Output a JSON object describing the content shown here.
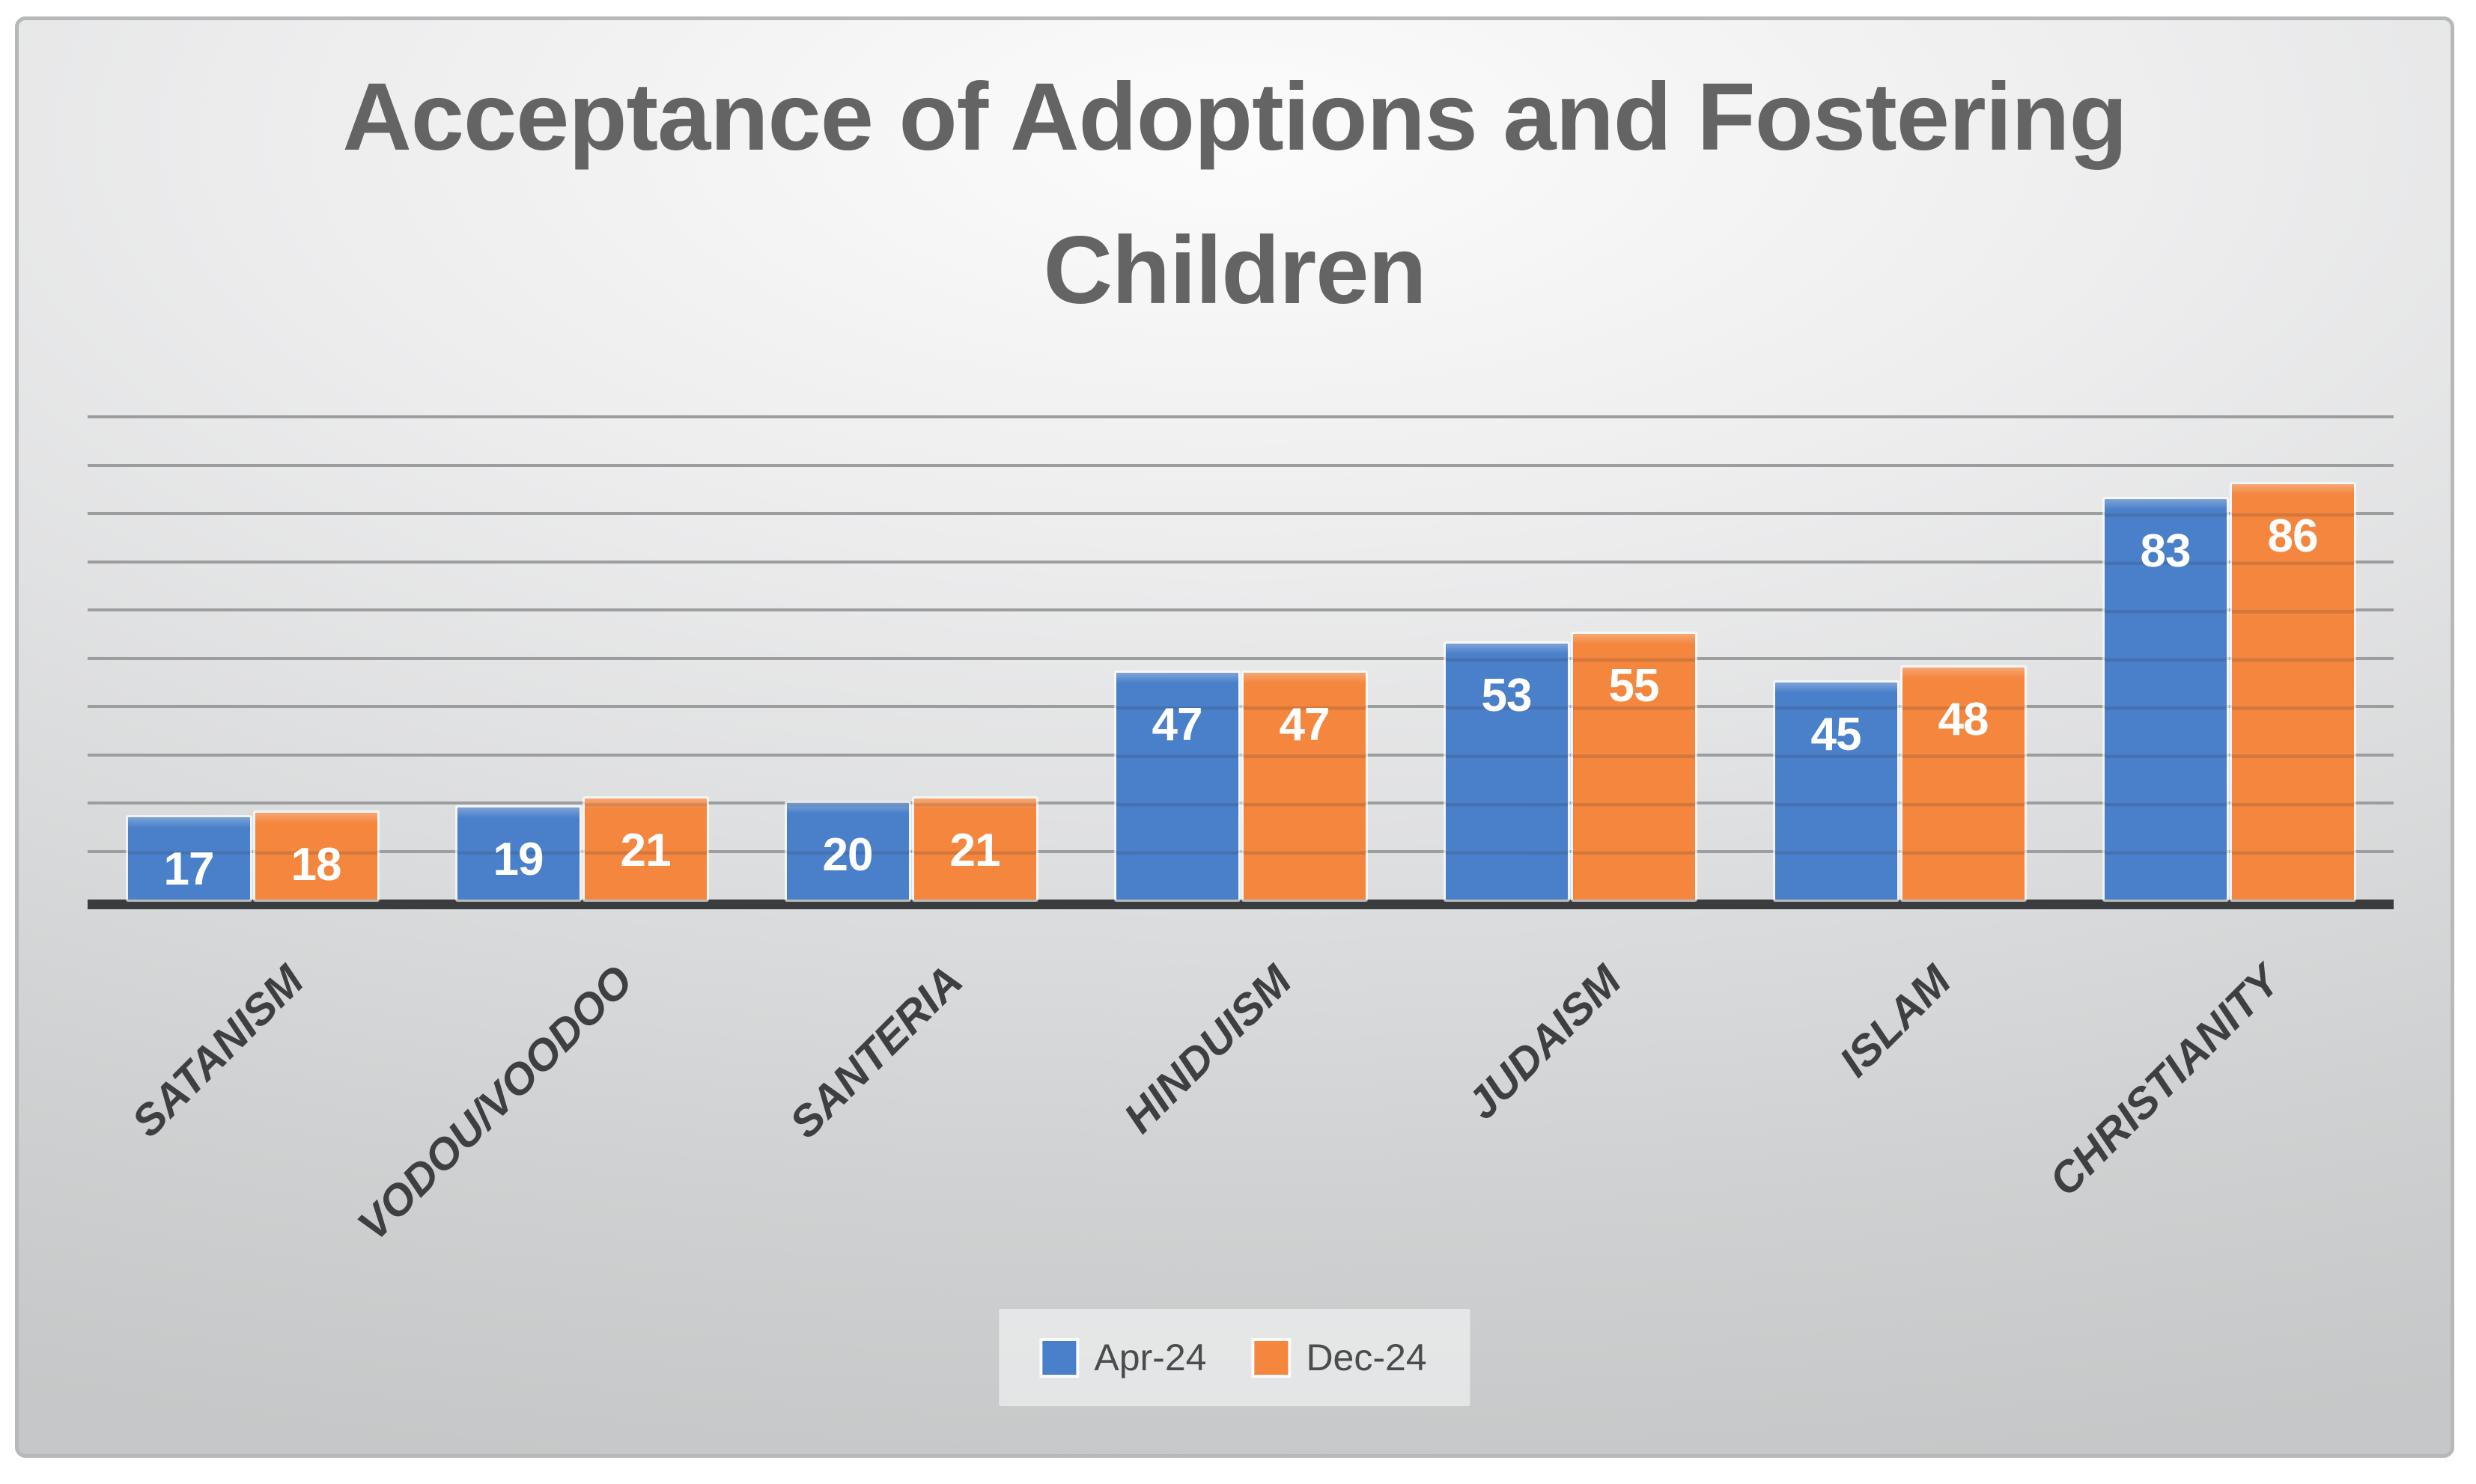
{
  "title": "Acceptance of Adoptions and Fostering Children",
  "colors": {
    "series_blue": "#4a80ca",
    "series_orange": "#f4863e",
    "axis_line": "#3b3c3d",
    "gridline": "#9b9d9e",
    "title_text": "#646464",
    "category_text": "#3e3f40",
    "data_label_text": "#ffffff"
  },
  "legend": {
    "position": "bottom",
    "items": [
      {
        "label": "Apr-24",
        "color": "#4a80ca"
      },
      {
        "label": "Dec-24",
        "color": "#f4863e"
      }
    ]
  },
  "chart_data": {
    "type": "bar",
    "title": "Acceptance of Adoptions and Fostering Children",
    "categories": [
      "SATANISM",
      "VODOU/VOODOO",
      "SANTERIA",
      "HINDUISM",
      "JUDAISM",
      "ISLAM",
      "CHRISTIANITY"
    ],
    "series": [
      {
        "name": "Apr-24",
        "color": "#4a80ca",
        "values": [
          17,
          19,
          20,
          47,
          53,
          45,
          83
        ]
      },
      {
        "name": "Dec-24",
        "color": "#f4863e",
        "values": [
          18,
          21,
          21,
          47,
          55,
          48,
          86
        ]
      }
    ],
    "xlabel": "",
    "ylabel": "",
    "ylim": [
      0,
      100
    ],
    "gridline_interval": 10,
    "grid": true,
    "y_axis_tick_labels_visible": false,
    "data_labels_position": "inside-end",
    "category_label_rotation_deg": 45,
    "legend_position": "bottom"
  }
}
